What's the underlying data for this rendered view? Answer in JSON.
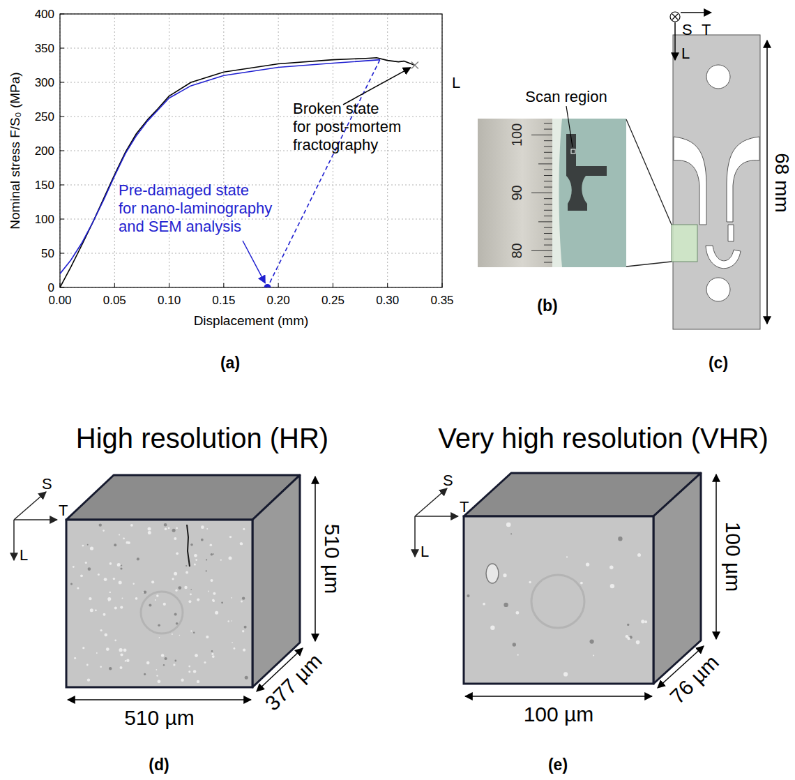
{
  "chart_data": {
    "type": "line",
    "label": "(a)",
    "x_label": "Displacement (mm)",
    "y_label": "Nominal stress F/S₀ (MPa)",
    "xlim": [
      0,
      0.35
    ],
    "xticks": [
      {
        "value": 0,
        "label": "0.00"
      },
      {
        "value": 0.05,
        "label": "0.05"
      },
      {
        "value": 0.1,
        "label": "0.10"
      },
      {
        "value": 0.15,
        "label": "0.15"
      },
      {
        "value": 0.2,
        "label": "0.20"
      },
      {
        "value": 0.25,
        "label": "0.25"
      },
      {
        "value": 0.3,
        "label": "0.30"
      },
      {
        "value": 0.35,
        "label": "0.35"
      }
    ],
    "ylim": [
      0,
      400
    ],
    "yticks": [
      0,
      50,
      100,
      150,
      200,
      250,
      300,
      350,
      400
    ],
    "grid": true,
    "series": [
      {
        "type": "line",
        "color": "#000000",
        "line_style": "solid",
        "x": [
          0,
          0.01,
          0.02,
          0.03,
          0.04,
          0.05,
          0.06,
          0.07,
          0.08,
          0.09,
          0.1,
          0.12,
          0.15,
          0.2,
          0.25,
          0.28,
          0.29,
          0.3,
          0.31,
          0.315,
          0.325
        ],
        "values": [
          0,
          30,
          62,
          95,
          130,
          165,
          198,
          225,
          245,
          262,
          280,
          300,
          315,
          327,
          333,
          335,
          336,
          332,
          330,
          331,
          325
        ]
      },
      {
        "type": "line",
        "color": "#1f1fd0",
        "line_style": "solid",
        "x": [
          0,
          0.01,
          0.02,
          0.03,
          0.04,
          0.05,
          0.06,
          0.07,
          0.08,
          0.09,
          0.1,
          0.12,
          0.15,
          0.2,
          0.25,
          0.293
        ],
        "values": [
          20,
          40,
          65,
          95,
          128,
          163,
          196,
          222,
          243,
          260,
          277,
          295,
          310,
          322,
          328,
          333
        ]
      },
      {
        "type": "line",
        "color": "#1f1fd0",
        "line_style": "dashed",
        "x": [
          0.293,
          0.19
        ],
        "values": [
          333,
          0
        ]
      },
      {
        "type": "scatter",
        "color": "#1f1fd0",
        "marker": "circle",
        "x": [
          0.19
        ],
        "values": [
          0
        ]
      },
      {
        "type": "scatter",
        "color": "#808080",
        "marker": "x",
        "x": [
          0.325
        ],
        "values": [
          325
        ]
      }
    ],
    "annotations": [
      {
        "text_lines": [
          "Broken state",
          "for post-mortem",
          "fractography"
        ],
        "x": 0.325,
        "y": 325,
        "color": "#000000"
      },
      {
        "text_lines": [
          "Pre-damaged state",
          "for nano-laminography",
          "and SEM analysis"
        ],
        "x": 0.19,
        "y": 0,
        "color": "#1f1fd0"
      }
    ]
  },
  "figure": {
    "b": {
      "label": "(b)",
      "scan_label": "Scan region",
      "ruler_labels": [
        "80",
        "90",
        "100"
      ]
    },
    "c": {
      "label": "(c)",
      "axes": [
        "S",
        "T",
        "L"
      ],
      "length": "68 mm",
      "side_label": "L"
    },
    "d": {
      "label": "(d)",
      "title": "High resolution (HR)",
      "axes": [
        "S",
        "T",
        "L"
      ],
      "dims": [
        "510 µm",
        "510 µm",
        "377 µm"
      ]
    },
    "e": {
      "label": "(e)",
      "title": "Very high resolution (VHR)",
      "axes": [
        "S",
        "T",
        "L"
      ],
      "dims": [
        "100 µm",
        "100 µm",
        "76 µm"
      ]
    }
  }
}
